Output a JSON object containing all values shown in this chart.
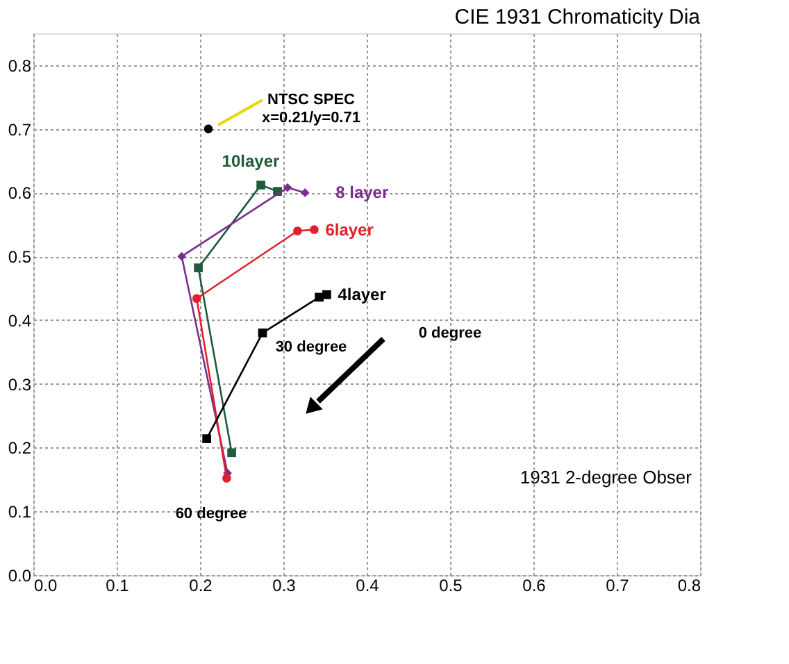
{
  "chart_data": {
    "type": "line",
    "title": "CIE 1931 Chromaticity Dia",
    "xlim": [
      0,
      0.8
    ],
    "ylim": [
      0,
      0.85
    ],
    "xticks": [
      {
        "value": 0,
        "label": "0.0"
      },
      0.1,
      0.2,
      0.3,
      0.4,
      0.5,
      0.6,
      0.7,
      0.8
    ],
    "yticks": [
      {
        "value": 0,
        "label": "0.0"
      },
      0.1,
      0.2,
      0.3,
      0.4,
      0.5,
      0.6,
      0.7,
      0.8
    ],
    "grid": true,
    "series": [
      {
        "name": "10layer",
        "color": "#1f5a3a",
        "marker": "square",
        "x": [
          0.293,
          0.273,
          0.198,
          0.238
        ],
        "values": [
          0.602,
          0.612,
          0.482,
          0.192
        ]
      },
      {
        "name": "8 layer",
        "color": "#7b2d8e",
        "marker": "diamond",
        "x": [
          0.326,
          0.305,
          0.178,
          0.233
        ],
        "values": [
          0.6,
          0.608,
          0.5,
          0.16
        ]
      },
      {
        "name": "6layer",
        "color": "#e0202a",
        "marker": "circle",
        "x": [
          0.337,
          0.317,
          0.196,
          0.232
        ],
        "values": [
          0.542,
          0.54,
          0.434,
          0.152
        ]
      },
      {
        "name": "4layer",
        "color": "#000000",
        "marker": "square",
        "x": [
          0.352,
          0.343,
          0.275,
          0.208
        ],
        "values": [
          0.44,
          0.436,
          0.38,
          0.214
        ]
      },
      {
        "type": "scatter",
        "color": "#000000",
        "marker": "circle",
        "x": [
          0.21
        ],
        "values": [
          0.7
        ]
      }
    ],
    "annotations": [
      "NTSC SPEC\nx=0.21/y=0.71",
      "0 degree",
      "30 degree",
      "60 degree",
      "1931 2-degree Obser"
    ]
  }
}
